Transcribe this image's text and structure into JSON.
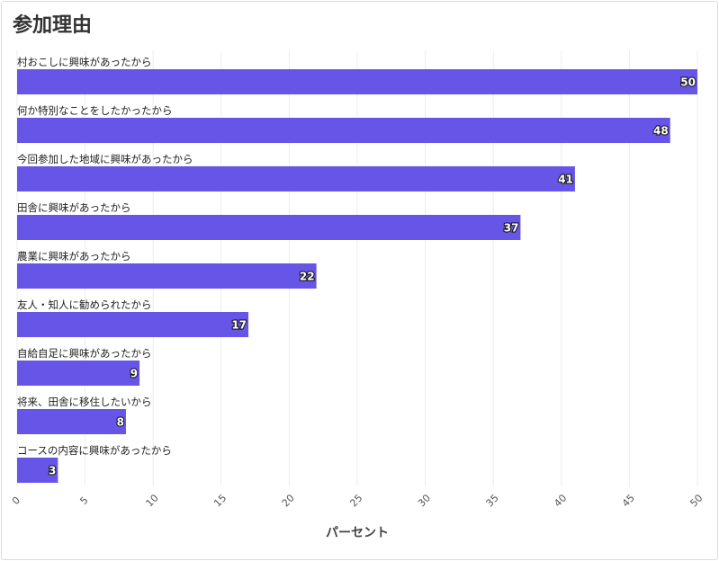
{
  "chart_data": {
    "type": "bar",
    "orientation": "horizontal",
    "title": "参加理由",
    "xlabel": "パーセント",
    "xlim": [
      0,
      50
    ],
    "xticks": [
      0,
      5,
      10,
      15,
      20,
      25,
      30,
      35,
      40,
      45,
      50
    ],
    "grid": true,
    "bar_color": "#6655e6",
    "categories": [
      "村おこしに興味があったから",
      "何か特別なことをしたかったから",
      "今回参加した地域に興味があったから",
      "田舎に興味があったから",
      "農業に興味があったから",
      "友人・知人に勧められたから",
      "自給自足に興味があったから",
      "将来、田舎に移住したいから",
      "コースの内容に興味があったから"
    ],
    "values": [
      50,
      48,
      41,
      37,
      22,
      17,
      9,
      8,
      3
    ]
  }
}
